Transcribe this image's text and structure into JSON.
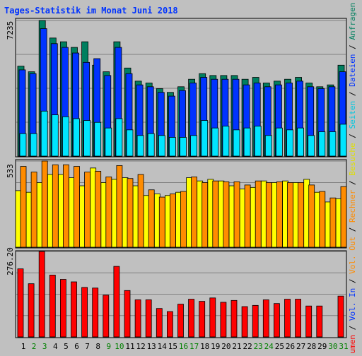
{
  "chart_data": [
    {
      "type": "bar",
      "title": "Tages-Statistik im Monat Juni 2018",
      "ytick_label": "7235",
      "ylim": [
        0,
        7235
      ],
      "categories": [
        "1",
        "2",
        "3",
        "4",
        "5",
        "6",
        "7",
        "8",
        "9",
        "10",
        "11",
        "12",
        "13",
        "14",
        "15",
        "16",
        "17",
        "18",
        "19",
        "20",
        "21",
        "22",
        "23",
        "24",
        "25",
        "26",
        "27",
        "28",
        "29",
        "30",
        "31"
      ],
      "weekend_days": [
        "2",
        "3",
        "9",
        "10",
        "16",
        "17",
        "23",
        "24",
        "30",
        "31"
      ],
      "series": [
        {
          "name": "Anfragen",
          "color": "#007f5f",
          "values": [
            4800,
            4500,
            7235,
            6300,
            6100,
            5800,
            6100,
            4850,
            4500,
            6100,
            4700,
            4000,
            3900,
            3600,
            3400,
            3700,
            4100,
            4400,
            4300,
            4300,
            4300,
            4100,
            4200,
            3900,
            4000,
            4100,
            4200,
            3900,
            3700,
            3800,
            4850
          ]
        },
        {
          "name": "Dateien",
          "color": "#0033ff",
          "values": [
            4600,
            4400,
            6800,
            6000,
            5800,
            5500,
            5000,
            5200,
            4300,
            5800,
            4400,
            3800,
            3700,
            3400,
            3200,
            3500,
            3900,
            4200,
            4100,
            4100,
            4100,
            3800,
            3900,
            3700,
            3800,
            3900,
            4000,
            3700,
            3600,
            3700,
            4500
          ]
        },
        {
          "name": "Seiten",
          "color": "#00e5ff",
          "values": [
            1200,
            1200,
            2400,
            2200,
            2100,
            2000,
            1900,
            1800,
            1500,
            2000,
            1400,
            1100,
            1200,
            1100,
            1000,
            1000,
            1100,
            1900,
            1500,
            1600,
            1400,
            1500,
            1600,
            1100,
            1500,
            1400,
            1500,
            1100,
            1300,
            1300,
            1700
          ]
        }
      ]
    },
    {
      "type": "bar",
      "ytick_label": "533",
      "ylim": [
        0,
        533
      ],
      "categories": [
        "1",
        "2",
        "3",
        "4",
        "5",
        "6",
        "7",
        "8",
        "9",
        "10",
        "11",
        "12",
        "13",
        "14",
        "15",
        "16",
        "17",
        "18",
        "19",
        "20",
        "21",
        "22",
        "23",
        "24",
        "25",
        "26",
        "27",
        "28",
        "29",
        "30",
        "31"
      ],
      "series": [
        {
          "name": "Besuche",
          "color": "#ffff00",
          "values": [
            350,
            340,
            400,
            450,
            450,
            430,
            380,
            490,
            400,
            420,
            430,
            380,
            320,
            330,
            320,
            340,
            430,
            410,
            420,
            410,
            380,
            360,
            370,
            410,
            400,
            410,
            400,
            420,
            340,
            280,
            300
          ]
        },
        {
          "name": "Rechner",
          "color": "#ff8c00",
          "values": [
            500,
            465,
            533,
            510,
            510,
            500,
            465,
            470,
            435,
            505,
            425,
            450,
            355,
            310,
            330,
            345,
            435,
            400,
            410,
            405,
            405,
            385,
            410,
            400,
            405,
            400,
            400,
            385,
            345,
            305,
            375
          ]
        }
      ]
    },
    {
      "type": "bar",
      "ytick_label": "276.20",
      "ylim": [
        0,
        276.2
      ],
      "categories": [
        "1",
        "2",
        "3",
        "4",
        "5",
        "6",
        "7",
        "8",
        "9",
        "10",
        "11",
        "12",
        "13",
        "14",
        "15",
        "16",
        "17",
        "18",
        "19",
        "20",
        "21",
        "22",
        "23",
        "24",
        "25",
        "26",
        "27",
        "28",
        "29",
        "30",
        "31"
      ],
      "series": [
        {
          "name": "Volumen",
          "color": "#ff0000",
          "values": [
            220,
            172,
            276,
            200,
            186,
            178,
            160,
            158,
            135,
            228,
            150,
            120,
            120,
            92,
            82,
            106,
            122,
            115,
            126,
            112,
            118,
            98,
            102,
            120,
            108,
            122,
            122,
            100,
            100,
            0,
            132
          ]
        }
      ]
    }
  ],
  "right_legend": [
    {
      "text": "Anfragen",
      "color": "#00805f"
    },
    {
      "text": "Dateien",
      "color": "#0033ff"
    },
    {
      "text": "Seiten",
      "color": "#00c8e0"
    },
    {
      "text": "Besuche",
      "color": "#e0e000"
    },
    {
      "text": "Rechner",
      "color": "#ff8c00"
    },
    {
      "text": "Vol. Out",
      "color": "#ff8c00"
    },
    {
      "text": "Vol. In",
      "color": "#0033ff"
    },
    {
      "text": "Volumen",
      "color": "#ff0000"
    }
  ],
  "colors": {
    "weekday_label": "#000000",
    "weekend_label": "#008000",
    "title": "#0033ff"
  }
}
